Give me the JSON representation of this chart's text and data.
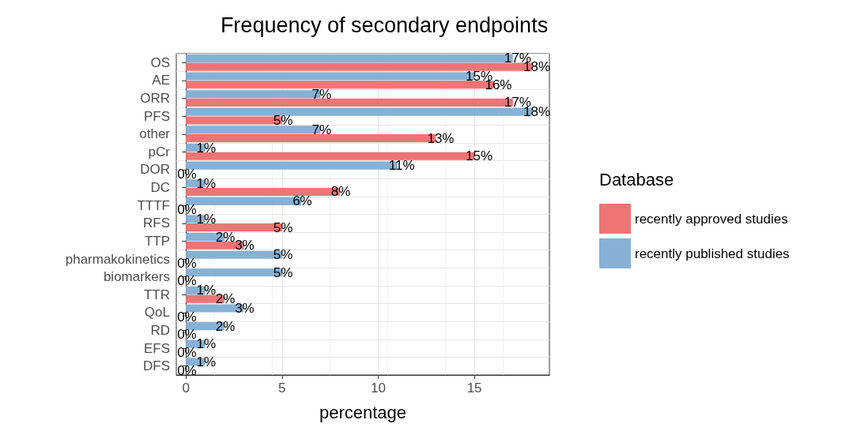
{
  "chart_data": {
    "type": "bar",
    "orientation": "horizontal",
    "title": "Frequency of secondary endpoints",
    "xlabel": "percentage",
    "legend_title": "Database",
    "legend": "right",
    "grid": true,
    "categories": [
      "OS",
      "AE",
      "ORR",
      "PFS",
      "other",
      "pCr",
      "DOR",
      "DC",
      "TTTF",
      "RFS",
      "TTP",
      "pharmakokinetics",
      "biomarkers",
      "TTR",
      "QoL",
      "RD",
      "EFS",
      "DFS"
    ],
    "xlim": [
      -0.5,
      18.9
    ],
    "xticks": [
      0,
      5,
      10,
      15
    ],
    "series": [
      {
        "name": "recently approved studies",
        "color": "#ef7475",
        "values": [
          18,
          16,
          17,
          5,
          13,
          15,
          0,
          8,
          0,
          5,
          3,
          0,
          0,
          2,
          0,
          0,
          0,
          0
        ],
        "value_labels": [
          "18%",
          "16%",
          "17%",
          "5%",
          "13%",
          "15%",
          "0%",
          "8%",
          "0%",
          "5%",
          "3%",
          "0%",
          "0%",
          "2%",
          "0%",
          "0%",
          "0%",
          "0%"
        ]
      },
      {
        "name": "recently published studies",
        "color": "#86b1d5",
        "values": [
          17,
          15,
          7,
          18,
          7,
          1,
          11,
          1,
          6,
          1,
          2,
          5,
          5,
          1,
          3,
          2,
          1,
          1
        ],
        "value_labels": [
          "17%",
          "15%",
          "7%",
          "18%",
          "7%",
          "1%",
          "11%",
          "1%",
          "6%",
          "1%",
          "2%",
          "5%",
          "5%",
          "1%",
          "3%",
          "2%",
          "1%",
          "1%"
        ]
      }
    ]
  }
}
